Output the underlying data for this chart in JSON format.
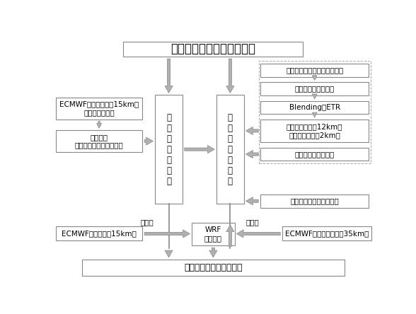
{
  "title": "风暴尺度集合概率预报系统",
  "bottom_box": "预报检验，系统偏差订正",
  "left_box1": "ECMWF全球分析场（15km）\n插值到模式区域",
  "left_box2": "资料同化\n（主要考虑雷达等观测）",
  "center_left_box": "控\n制\n预\n报\n初\n始\n场",
  "center_right_box": "集\n合\n成\n员\n初\n始\n场",
  "wrf_box": "WRF\n模式预报",
  "right_box1": "风暴系统发生发展的关键因子",
  "right_box2": "自适应选择扰动变量",
  "right_box3": "Blending＋ETR",
  "right_box4": "模式外层扰动（12km）\n模式内层扰动（2km）",
  "right_box5": "变分资料同化的集合",
  "right_box6": "能量守恒的随机物理扰动",
  "ecmwf_15km": "ECMWF全球预报（15km）",
  "ecmwf_35km": "ECMWF全球集合预报（35km）",
  "label_left": "侧边界",
  "label_right": "侧边界",
  "bg_color": "#ffffff",
  "box_edge_color": "#888888",
  "arrow_fill": "#b0b0b0",
  "arrow_edge": "#888888",
  "title_fontsize": 12,
  "text_fontsize": 8,
  "small_fontsize": 7.5
}
